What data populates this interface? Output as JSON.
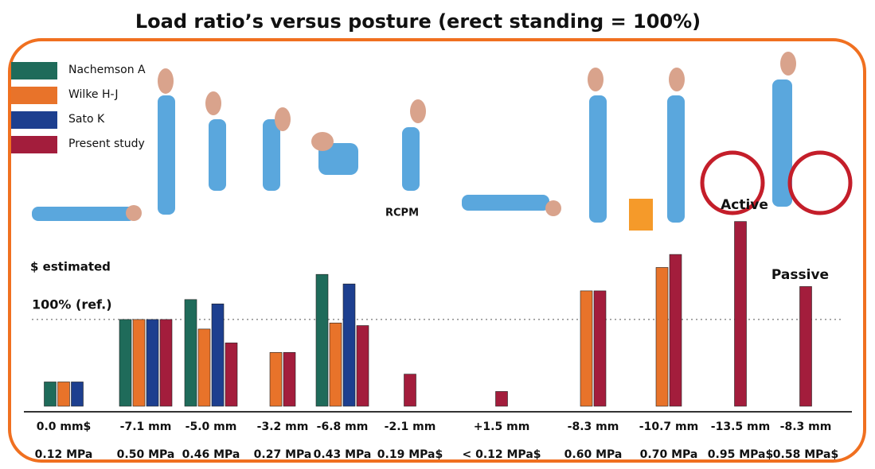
{
  "chart_data": {
    "type": "bar",
    "title": "Load ratio’s versus posture (erect standing = 100%)",
    "categories": [
      "0.0 mm$",
      "-7.1 mm",
      "-5.0 mm",
      "-3.2 mm",
      "-6.8 mm",
      "-2.1 mm",
      "+1.5 mm",
      "-8.3 mm",
      "-10.7 mm",
      "-13.5 mm",
      "-8.3 mm"
    ],
    "pressures": [
      "0.12 MPa",
      "0.50 MPa",
      "0.46 MPa",
      "0.27 MPa",
      "0.43 MPa",
      "0.19 MPa$",
      "< 0.12 MPa$",
      "0.60 MPa",
      "0.70 MPa",
      "0.95 MPa$",
      "0.58 MPa$"
    ],
    "series": [
      {
        "name": "Nachemson A",
        "color": "#1f6b5a",
        "values": [
          28,
          100,
          123,
          null,
          152,
          null,
          null,
          null,
          null,
          null,
          null
        ]
      },
      {
        "name": "Wilke H-J",
        "color": "#e8732a",
        "values": [
          28,
          100,
          89,
          62,
          96,
          null,
          null,
          133,
          160,
          null,
          null
        ]
      },
      {
        "name": "Sato K",
        "color": "#1d3f8f",
        "values": [
          28,
          100,
          118,
          null,
          141,
          null,
          null,
          null,
          null,
          null,
          null
        ]
      },
      {
        "name": "Present study",
        "color": "#a31d3c",
        "values": [
          null,
          100,
          73,
          62,
          93,
          37,
          17,
          133,
          175,
          213,
          138
        ]
      }
    ],
    "ylim": [
      0,
      220
    ],
    "yticks": [
      {
        "value": 100,
        "label": "100% (ref.)"
      }
    ],
    "annotations": [
      "$ estimated",
      "RCPM",
      "Active",
      "Passive"
    ],
    "legend": "top-left"
  }
}
